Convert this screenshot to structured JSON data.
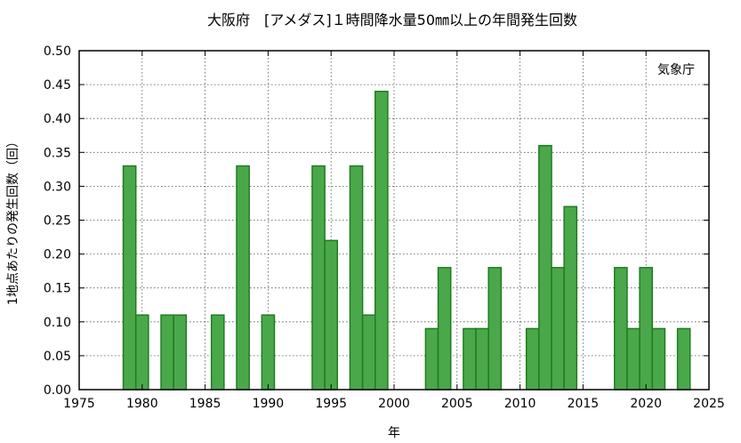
{
  "chart_data": {
    "type": "bar",
    "title": "大阪府　[アメダス]１時間降水量50㎜以上の年間発生回数",
    "xlabel": "年",
    "ylabel": "1地点あたりの発生回数（回）",
    "credit": "気象庁",
    "xlim": [
      1975,
      2025
    ],
    "ylim": [
      0,
      0.5
    ],
    "x_ticks": [
      "1975",
      "1980",
      "1985",
      "1990",
      "1995",
      "2000",
      "2005",
      "2010",
      "2015",
      "2020",
      "2025"
    ],
    "y_ticks": [
      "0.00",
      "0.05",
      "0.10",
      "0.15",
      "0.20",
      "0.25",
      "0.30",
      "0.35",
      "0.40",
      "0.45",
      "0.50"
    ],
    "grid": true,
    "bar_color": "#4aa84a",
    "bar_edge_color": "#1e7d1e",
    "x": [
      1979,
      1980,
      1982,
      1983,
      1986,
      1988,
      1990,
      1994,
      1995,
      1997,
      1998,
      1999,
      2003,
      2004,
      2006,
      2007,
      2008,
      2011,
      2012,
      2013,
      2014,
      2018,
      2019,
      2020,
      2021,
      2023
    ],
    "values": [
      0.33,
      0.11,
      0.11,
      0.11,
      0.11,
      0.33,
      0.11,
      0.33,
      0.22,
      0.33,
      0.11,
      0.44,
      0.09,
      0.18,
      0.09,
      0.09,
      0.18,
      0.09,
      0.36,
      0.18,
      0.27,
      0.18,
      0.09,
      0.18,
      0.09,
      0.09
    ]
  }
}
